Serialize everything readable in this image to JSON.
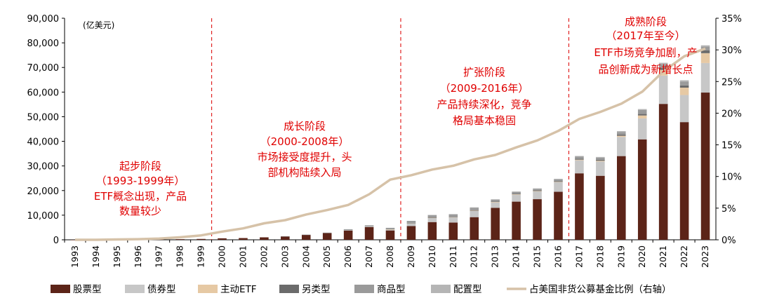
{
  "chart_data": {
    "type": "bar",
    "stacked": true,
    "unit_label": "(亿美元)",
    "categories": [
      "1993",
      "1994",
      "1995",
      "1996",
      "1997",
      "1998",
      "1999",
      "2000",
      "2001",
      "2002",
      "2003",
      "2004",
      "2005",
      "2006",
      "2007",
      "2008",
      "2009",
      "2010",
      "2011",
      "2012",
      "2013",
      "2014",
      "2015",
      "2016",
      "2017",
      "2018",
      "2019",
      "2020",
      "2021",
      "2022",
      "2023"
    ],
    "ylim": [
      0,
      90000
    ],
    "y_ticks": [
      "0",
      "10,000",
      "20,000",
      "30,000",
      "40,000",
      "50,000",
      "60,000",
      "70,000",
      "80,000",
      "90,000"
    ],
    "y2lim": [
      0,
      35
    ],
    "y2_ticks": [
      "0%",
      "5%",
      "10%",
      "15%",
      "20%",
      "25%",
      "30%",
      "35%"
    ],
    "series": [
      {
        "name": "股票型",
        "color": "#5c2418",
        "values": [
          5,
          20,
          50,
          80,
          150,
          250,
          350,
          600,
          700,
          1000,
          1400,
          2000,
          2700,
          3800,
          5200,
          3800,
          5600,
          7200,
          7000,
          9200,
          13000,
          15500,
          16500,
          19500,
          27000,
          26000,
          34000,
          40800,
          55200,
          47800,
          59800
        ]
      },
      {
        "name": "债券型",
        "color": "#c7c7c7",
        "values": [
          0,
          0,
          0,
          0,
          0,
          0,
          0,
          0,
          0,
          0,
          0,
          0,
          0,
          100,
          250,
          450,
          1200,
          1800,
          2200,
          2600,
          2300,
          2900,
          3200,
          3900,
          5300,
          5800,
          7800,
          8500,
          11500,
          11000,
          12000
        ]
      },
      {
        "name": "主动ETF",
        "color": "#e6c9a4",
        "values": [
          0,
          0,
          0,
          0,
          0,
          0,
          0,
          0,
          0,
          0,
          0,
          0,
          0,
          0,
          0,
          10,
          20,
          30,
          40,
          50,
          80,
          100,
          120,
          150,
          250,
          300,
          450,
          1200,
          2300,
          3000,
          4000
        ]
      },
      {
        "name": "另类型",
        "color": "#6b6b6b",
        "values": [
          0,
          0,
          0,
          0,
          0,
          0,
          0,
          0,
          0,
          0,
          0,
          0,
          0,
          0,
          0,
          0,
          60,
          80,
          100,
          150,
          200,
          250,
          280,
          330,
          400,
          450,
          500,
          600,
          800,
          900,
          1100
        ]
      },
      {
        "name": "商品型",
        "color": "#9a9a9a",
        "values": [
          0,
          0,
          0,
          0,
          0,
          0,
          0,
          0,
          0,
          0,
          50,
          100,
          200,
          400,
          450,
          600,
          800,
          900,
          1000,
          1000,
          700,
          700,
          600,
          600,
          800,
          800,
          1000,
          1600,
          1600,
          1600,
          1600
        ]
      },
      {
        "name": "配置型",
        "color": "#b5b5b5",
        "values": [
          0,
          0,
          0,
          0,
          0,
          0,
          0,
          0,
          0,
          0,
          0,
          0,
          0,
          0,
          0,
          0,
          0,
          100,
          100,
          200,
          200,
          200,
          200,
          300,
          300,
          300,
          400,
          400,
          500,
          500,
          500
        ]
      }
    ],
    "line_series": {
      "name": "占美国非货公募基金比例（右轴）",
      "color": "#d6c2a8",
      "axis": "right",
      "values": [
        0.0,
        0.0,
        0.05,
        0.1,
        0.2,
        0.4,
        0.7,
        1.3,
        1.8,
        2.6,
        3.1,
        4.0,
        4.7,
        5.5,
        7.2,
        9.5,
        10.2,
        11.1,
        11.7,
        12.7,
        13.4,
        14.6,
        15.7,
        17.2,
        19.1,
        20.2,
        21.5,
        23.4,
        26.6,
        29.0,
        30.2
      ]
    },
    "grid": false,
    "legend_position": "bottom"
  },
  "phases": [
    {
      "title": "起步阶段",
      "period": "（1993-1999年）",
      "desc": [
        "ETF概念出现，产品",
        "数量较少"
      ]
    },
    {
      "title": "成长阶段",
      "period": "（2000-2008年）",
      "desc": [
        "市场接受度提升，头",
        "部机构陆续入局"
      ]
    },
    {
      "title": "扩张阶段",
      "period": "（2009-2016年）",
      "desc": [
        "产品持续深化，竞争",
        "格局基本稳固"
      ]
    },
    {
      "title": "成熟阶段",
      "period": "（2017年至今）",
      "desc": [
        "ETF市场竞争加剧，产",
        "品创新成为新增长点"
      ]
    }
  ]
}
